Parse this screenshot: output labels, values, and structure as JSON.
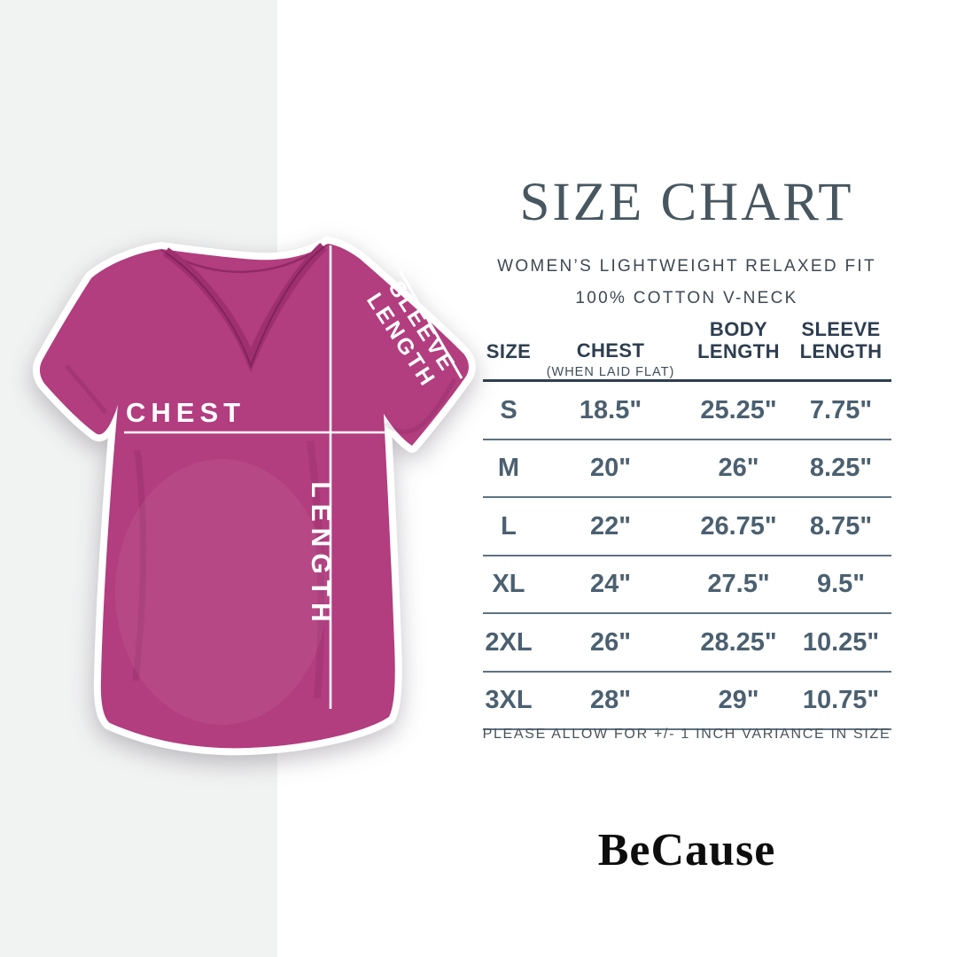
{
  "page": {
    "background": "#ffffff",
    "left_panel_color": "#f1f2f2"
  },
  "header": {
    "title": "SIZE CHART",
    "subtitle_line1": "WOMEN’S LIGHTWEIGHT RELAXED FIT",
    "subtitle_line2": "100% COTTON V-NECK",
    "title_color": "#47565f"
  },
  "tshirt": {
    "color": "#b23d7f",
    "labels": {
      "chest": "CHEST",
      "length": "LENGTH",
      "sleeve_line1": "SLEEVE",
      "sleeve_line2": "LENGTH"
    }
  },
  "size_table": {
    "columns": [
      {
        "label": "SIZE",
        "sublabel": ""
      },
      {
        "label": "CHEST",
        "sublabel": "(WHEN LAID FLAT)"
      },
      {
        "label": "BODY LENGTH",
        "sublabel": ""
      },
      {
        "label": "SLEEVE LENGTH",
        "sublabel": ""
      }
    ],
    "rows": [
      [
        "S",
        "18.5\"",
        "25.25\"",
        "7.75\""
      ],
      [
        "M",
        "20\"",
        "26\"",
        "8.25\""
      ],
      [
        "L",
        "22\"",
        "26.75\"",
        "8.75\""
      ],
      [
        "XL",
        "24\"",
        "27.5\"",
        "9.5\""
      ],
      [
        "2XL",
        "26\"",
        "28.25\"",
        "10.25\""
      ],
      [
        "3XL",
        "28\"",
        "29\"",
        "10.75\""
      ]
    ]
  },
  "footnote": "PLEASE ALLOW FOR +/- 1 INCH VARIANCE IN SIZE",
  "brand": "BeCause",
  "chart_data": {
    "type": "table",
    "title": "SIZE CHART",
    "subtitle": [
      "WOMEN’S LIGHTWEIGHT RELAXED FIT",
      "100% COTTON V-NECK"
    ],
    "columns": [
      "SIZE",
      "CHEST (WHEN LAID FLAT)",
      "BODY LENGTH",
      "SLEEVE LENGTH"
    ],
    "rows": [
      [
        "S",
        "18.5\"",
        "25.25\"",
        "7.75\""
      ],
      [
        "M",
        "20\"",
        "26\"",
        "8.25\""
      ],
      [
        "L",
        "22\"",
        "26.75\"",
        "8.75\""
      ],
      [
        "XL",
        "24\"",
        "27.5\"",
        "9.5\""
      ],
      [
        "2XL",
        "26\"",
        "28.25\"",
        "10.25\""
      ],
      [
        "3XL",
        "28\"",
        "29\"",
        "10.75\""
      ]
    ],
    "units": "inches",
    "note": "PLEASE ALLOW FOR +/- 1 INCH VARIANCE IN SIZE"
  }
}
